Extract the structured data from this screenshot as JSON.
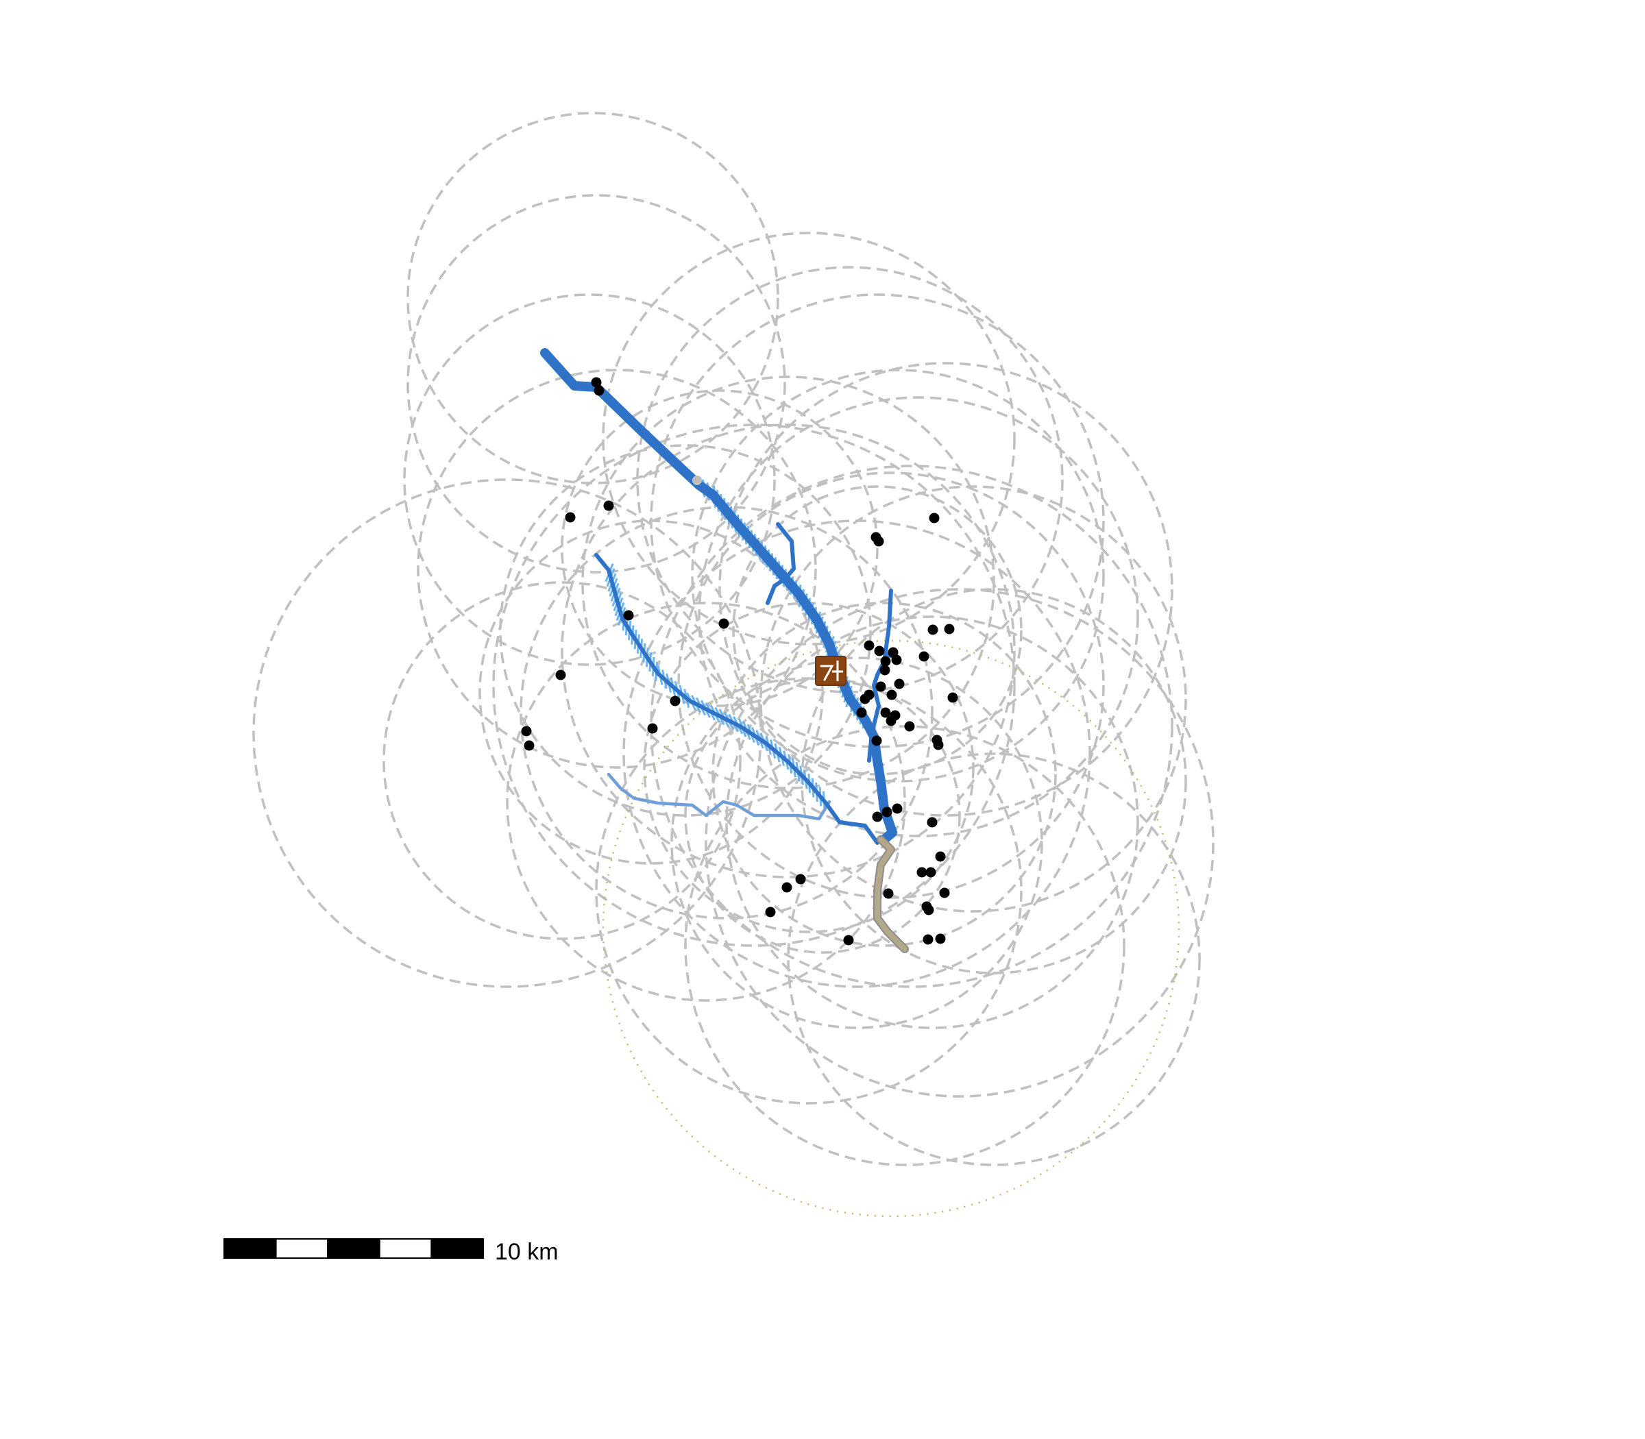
{
  "map": {
    "colors": {
      "range_ring": "#c0c0c0",
      "major_river": "#2e73c8",
      "minor_river": "#6f9fd8",
      "floodplain_hatch": "#6cb4f0",
      "dry_channel": "#b3a98a",
      "dry_channel_edge": "#8c8c8c",
      "site_point": "#000000",
      "dotted_boundary": "#c8b46a",
      "marker_fill": "#8b4513",
      "marker_glyph": "#ffffff",
      "gray_point": "#bfbfbf"
    },
    "icons": {
      "center_marker": "landmark-icon"
    },
    "scale_bar": {
      "label": "10 km",
      "segments": 5
    }
  }
}
